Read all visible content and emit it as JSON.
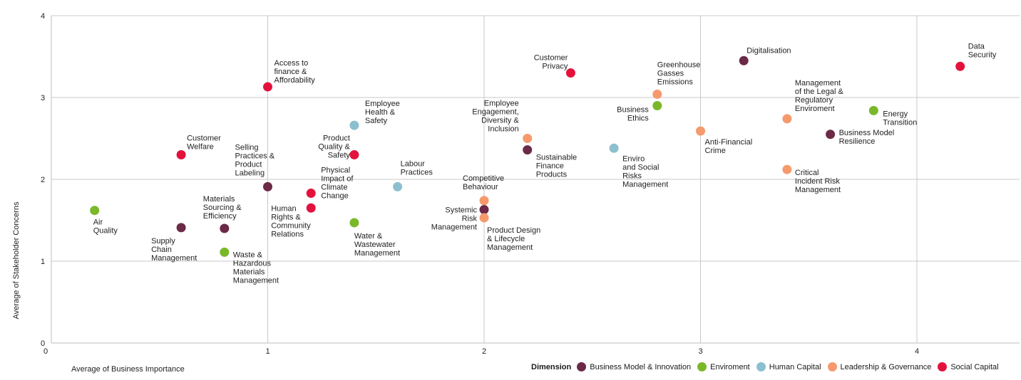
{
  "chart_data": {
    "type": "scatter",
    "xlabel": "Average of Business Importance",
    "ylabel": "Average of Stakeholder Concerns",
    "xlim": [
      0,
      4.3
    ],
    "ylim": [
      0,
      4
    ],
    "x_ticks": [
      "0",
      "1",
      "2",
      "3",
      "4"
    ],
    "y_ticks": [
      "0",
      "1",
      "2",
      "3",
      "4"
    ],
    "grid": true,
    "legend_title": "Dimension",
    "legend_position": "bottom-right",
    "series": [
      {
        "name": "Business Model & Innovation",
        "color": "#6b2a47",
        "points": [
          {
            "x": 1.0,
            "y": 1.91,
            "label": [
              "Selling",
              "Practices &",
              "Product",
              "Labeling"
            ]
          },
          {
            "x": 0.6,
            "y": 1.41,
            "label": [
              "Supply",
              "Chain",
              "Management"
            ]
          },
          {
            "x": 0.8,
            "y": 1.4,
            "label": [
              "Materials",
              "Sourcing &",
              "Efficiency"
            ]
          },
          {
            "x": 2.0,
            "y": 1.63,
            "label": [
              "Systemic",
              "Risk",
              "Management"
            ]
          },
          {
            "x": 2.2,
            "y": 2.36,
            "label": [
              "Sustainable",
              "Finance",
              "Products"
            ]
          },
          {
            "x": 3.2,
            "y": 3.45,
            "label": [
              "Digitalisation"
            ]
          },
          {
            "x": 3.6,
            "y": 2.55,
            "label": [
              "Business Model",
              "Resilience"
            ]
          }
        ]
      },
      {
        "name": "Enviroment",
        "color": "#7ab829",
        "points": [
          {
            "x": 0.2,
            "y": 1.62,
            "label": [
              "Air",
              "Quality"
            ]
          },
          {
            "x": 0.8,
            "y": 1.11,
            "label": [
              "Waste &",
              "Hazardous",
              "Materials",
              "Management"
            ]
          },
          {
            "x": 1.4,
            "y": 1.47,
            "label": [
              "Water &",
              "Wastewater",
              "Management"
            ]
          },
          {
            "x": 2.8,
            "y": 2.9,
            "label": [
              "Business",
              "Ethics"
            ]
          },
          {
            "x": 3.8,
            "y": 2.84,
            "label": [
              "Energy",
              "Transition"
            ]
          }
        ]
      },
      {
        "name": "Human Capital",
        "color": "#8cbfcf",
        "points": [
          {
            "x": 1.4,
            "y": 2.66,
            "label": [
              "Employee",
              "Health &",
              "Safety"
            ]
          },
          {
            "x": 1.6,
            "y": 1.91,
            "label": [
              "Labour",
              "Practices"
            ]
          },
          {
            "x": 2.6,
            "y": 2.38,
            "label": [
              "Enviro",
              "and Social",
              "Risks",
              "Management"
            ]
          }
        ]
      },
      {
        "name": "Leadership & Governance",
        "color": "#f59a6c",
        "points": [
          {
            "x": 2.0,
            "y": 1.74,
            "label": [
              "Competitive",
              "Behaviour"
            ]
          },
          {
            "x": 2.0,
            "y": 1.53,
            "label": [
              "Product Design",
              "& Lifecycle",
              "Management"
            ]
          },
          {
            "x": 2.2,
            "y": 2.5,
            "label": [
              "Employee",
              "Engagement,",
              "Diversity &",
              "Inclusion"
            ]
          },
          {
            "x": 2.8,
            "y": 3.04,
            "label": [
              "Greenhouse",
              "Gasses",
              "Emissions"
            ]
          },
          {
            "x": 3.0,
            "y": 2.59,
            "label": [
              "Anti-Financial",
              "Crime"
            ]
          },
          {
            "x": 3.4,
            "y": 2.74,
            "label": [
              "Management",
              "of the Legal &",
              "Regulatory",
              "Enviroment"
            ]
          },
          {
            "x": 3.4,
            "y": 2.12,
            "label": [
              "Critical",
              "Incident Risk",
              "Management"
            ]
          }
        ]
      },
      {
        "name": "Social Capital",
        "color": "#e3123c",
        "points": [
          {
            "x": 1.0,
            "y": 3.13,
            "label": [
              "Access to",
              "finance &",
              "Affordability"
            ]
          },
          {
            "x": 0.6,
            "y": 2.3,
            "label": [
              "Customer",
              "Welfare"
            ]
          },
          {
            "x": 1.4,
            "y": 2.3,
            "label": [
              "Product",
              "Quality &",
              "Safety"
            ]
          },
          {
            "x": 1.2,
            "y": 1.83,
            "label": [
              "Physical",
              "Impact of",
              "Climate",
              "Change"
            ]
          },
          {
            "x": 1.2,
            "y": 1.65,
            "label": [
              "Human",
              "Rights &",
              "Community",
              "Relations"
            ]
          },
          {
            "x": 2.4,
            "y": 3.3,
            "label": [
              "Customer",
              "Privacy"
            ]
          },
          {
            "x": 4.2,
            "y": 3.38,
            "label": [
              "Data",
              "Security"
            ]
          }
        ]
      }
    ]
  }
}
